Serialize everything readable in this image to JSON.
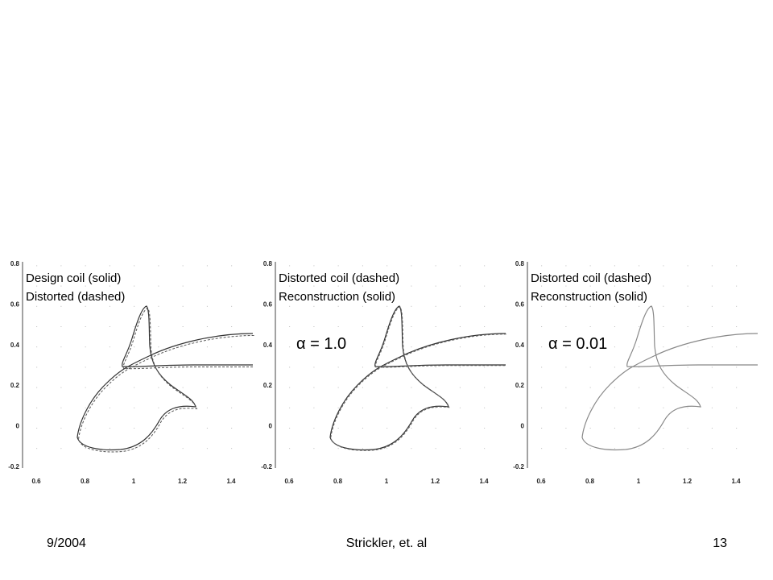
{
  "panels": [
    {
      "legend": [
        "Design coil (solid)",
        "Distorted (dashed)"
      ],
      "xticks": [
        "0.6",
        "0.8",
        "1",
        "1.2",
        "1.4"
      ],
      "yticks": [
        "0.8",
        "0.6",
        "0.4",
        "0.2",
        "0",
        "-0.2"
      ]
    },
    {
      "legend": [
        "Distorted coil (dashed)",
        "Reconstruction (solid)"
      ],
      "alpha": "α = 1.0",
      "xticks": [
        "0.6",
        "0.8",
        "1",
        "1.2",
        "1.4"
      ],
      "yticks": [
        "0.8",
        "0.6",
        "0.4",
        "0.2",
        "0",
        "-0.2"
      ]
    },
    {
      "legend": [
        "Distorted coil (dashed)",
        "Reconstruction (solid)"
      ],
      "alpha": "α = 0.01",
      "xticks": [
        "0.6",
        "0.8",
        "1",
        "1.2",
        "1.4"
      ],
      "yticks": [
        "0.8",
        "0.6",
        "0.4",
        "0.2",
        "0",
        "-0.2"
      ]
    }
  ],
  "footer": {
    "date": "9/2004",
    "author": "Strickler, et. al",
    "page": "13"
  }
}
